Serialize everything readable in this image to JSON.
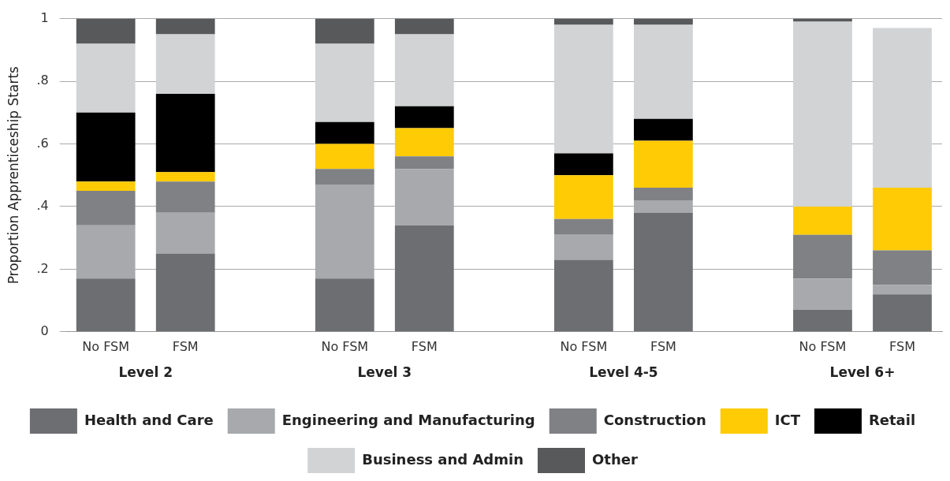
{
  "chart_data": {
    "type": "bar",
    "stacked": true,
    "ylabel": "Proportion Apprenticeship Starts",
    "categories": [
      "No FSM",
      "FSM",
      null,
      "No FSM",
      "FSM",
      null,
      "No FSM",
      "FSM",
      null,
      "No FSM",
      "FSM"
    ],
    "annotations": [
      "Level 2",
      "Level 3",
      "Level 4-5",
      "Level 6+"
    ],
    "series": [
      {
        "name": "Health and Care",
        "color": "#6d6e71",
        "values": [
          0.17,
          0.25,
          null,
          0.17,
          0.34,
          null,
          0.23,
          0.38,
          null,
          0.07,
          0.12
        ]
      },
      {
        "name": "Engineering and Manufacturing",
        "color": "#a7a9ac",
        "values": [
          0.17,
          0.13,
          null,
          0.3,
          0.18,
          null,
          0.08,
          0.04,
          null,
          0.1,
          0.03
        ]
      },
      {
        "name": "Construction",
        "color": "#808184",
        "values": [
          0.11,
          0.1,
          null,
          0.05,
          0.04,
          null,
          0.05,
          0.04,
          null,
          0.14,
          0.11
        ]
      },
      {
        "name": "ICT",
        "color": "#ffcb05",
        "values": [
          0.03,
          0.03,
          null,
          0.08,
          0.09,
          null,
          0.14,
          0.15,
          null,
          0.09,
          0.2
        ]
      },
      {
        "name": "Retail",
        "color": "#000000",
        "values": [
          0.22,
          0.25,
          null,
          0.07,
          0.07,
          null,
          0.07,
          0.07,
          null,
          0,
          0
        ]
      },
      {
        "name": "Business and Admin",
        "color": "#d1d3d4",
        "values": [
          0.22,
          0.19,
          null,
          0.25,
          0.23,
          null,
          0.41,
          0.3,
          null,
          0.59,
          0.51
        ]
      },
      {
        "name": "Other",
        "color": "#58595b",
        "values": [
          0.08,
          0.05,
          null,
          0.08,
          0.05,
          null,
          0.02,
          0.02,
          null,
          0.01,
          0
        ]
      }
    ],
    "ylim": [
      0,
      1
    ],
    "yticks": [
      0,
      {
        "value": 0.2,
        "label": ".2"
      },
      {
        "value": 0.4,
        "label": ".4"
      },
      {
        "value": 0.6,
        "label": ".6"
      },
      {
        "value": 0.8,
        "label": ".8"
      },
      1
    ],
    "grid": "y",
    "legend": "bottom"
  }
}
